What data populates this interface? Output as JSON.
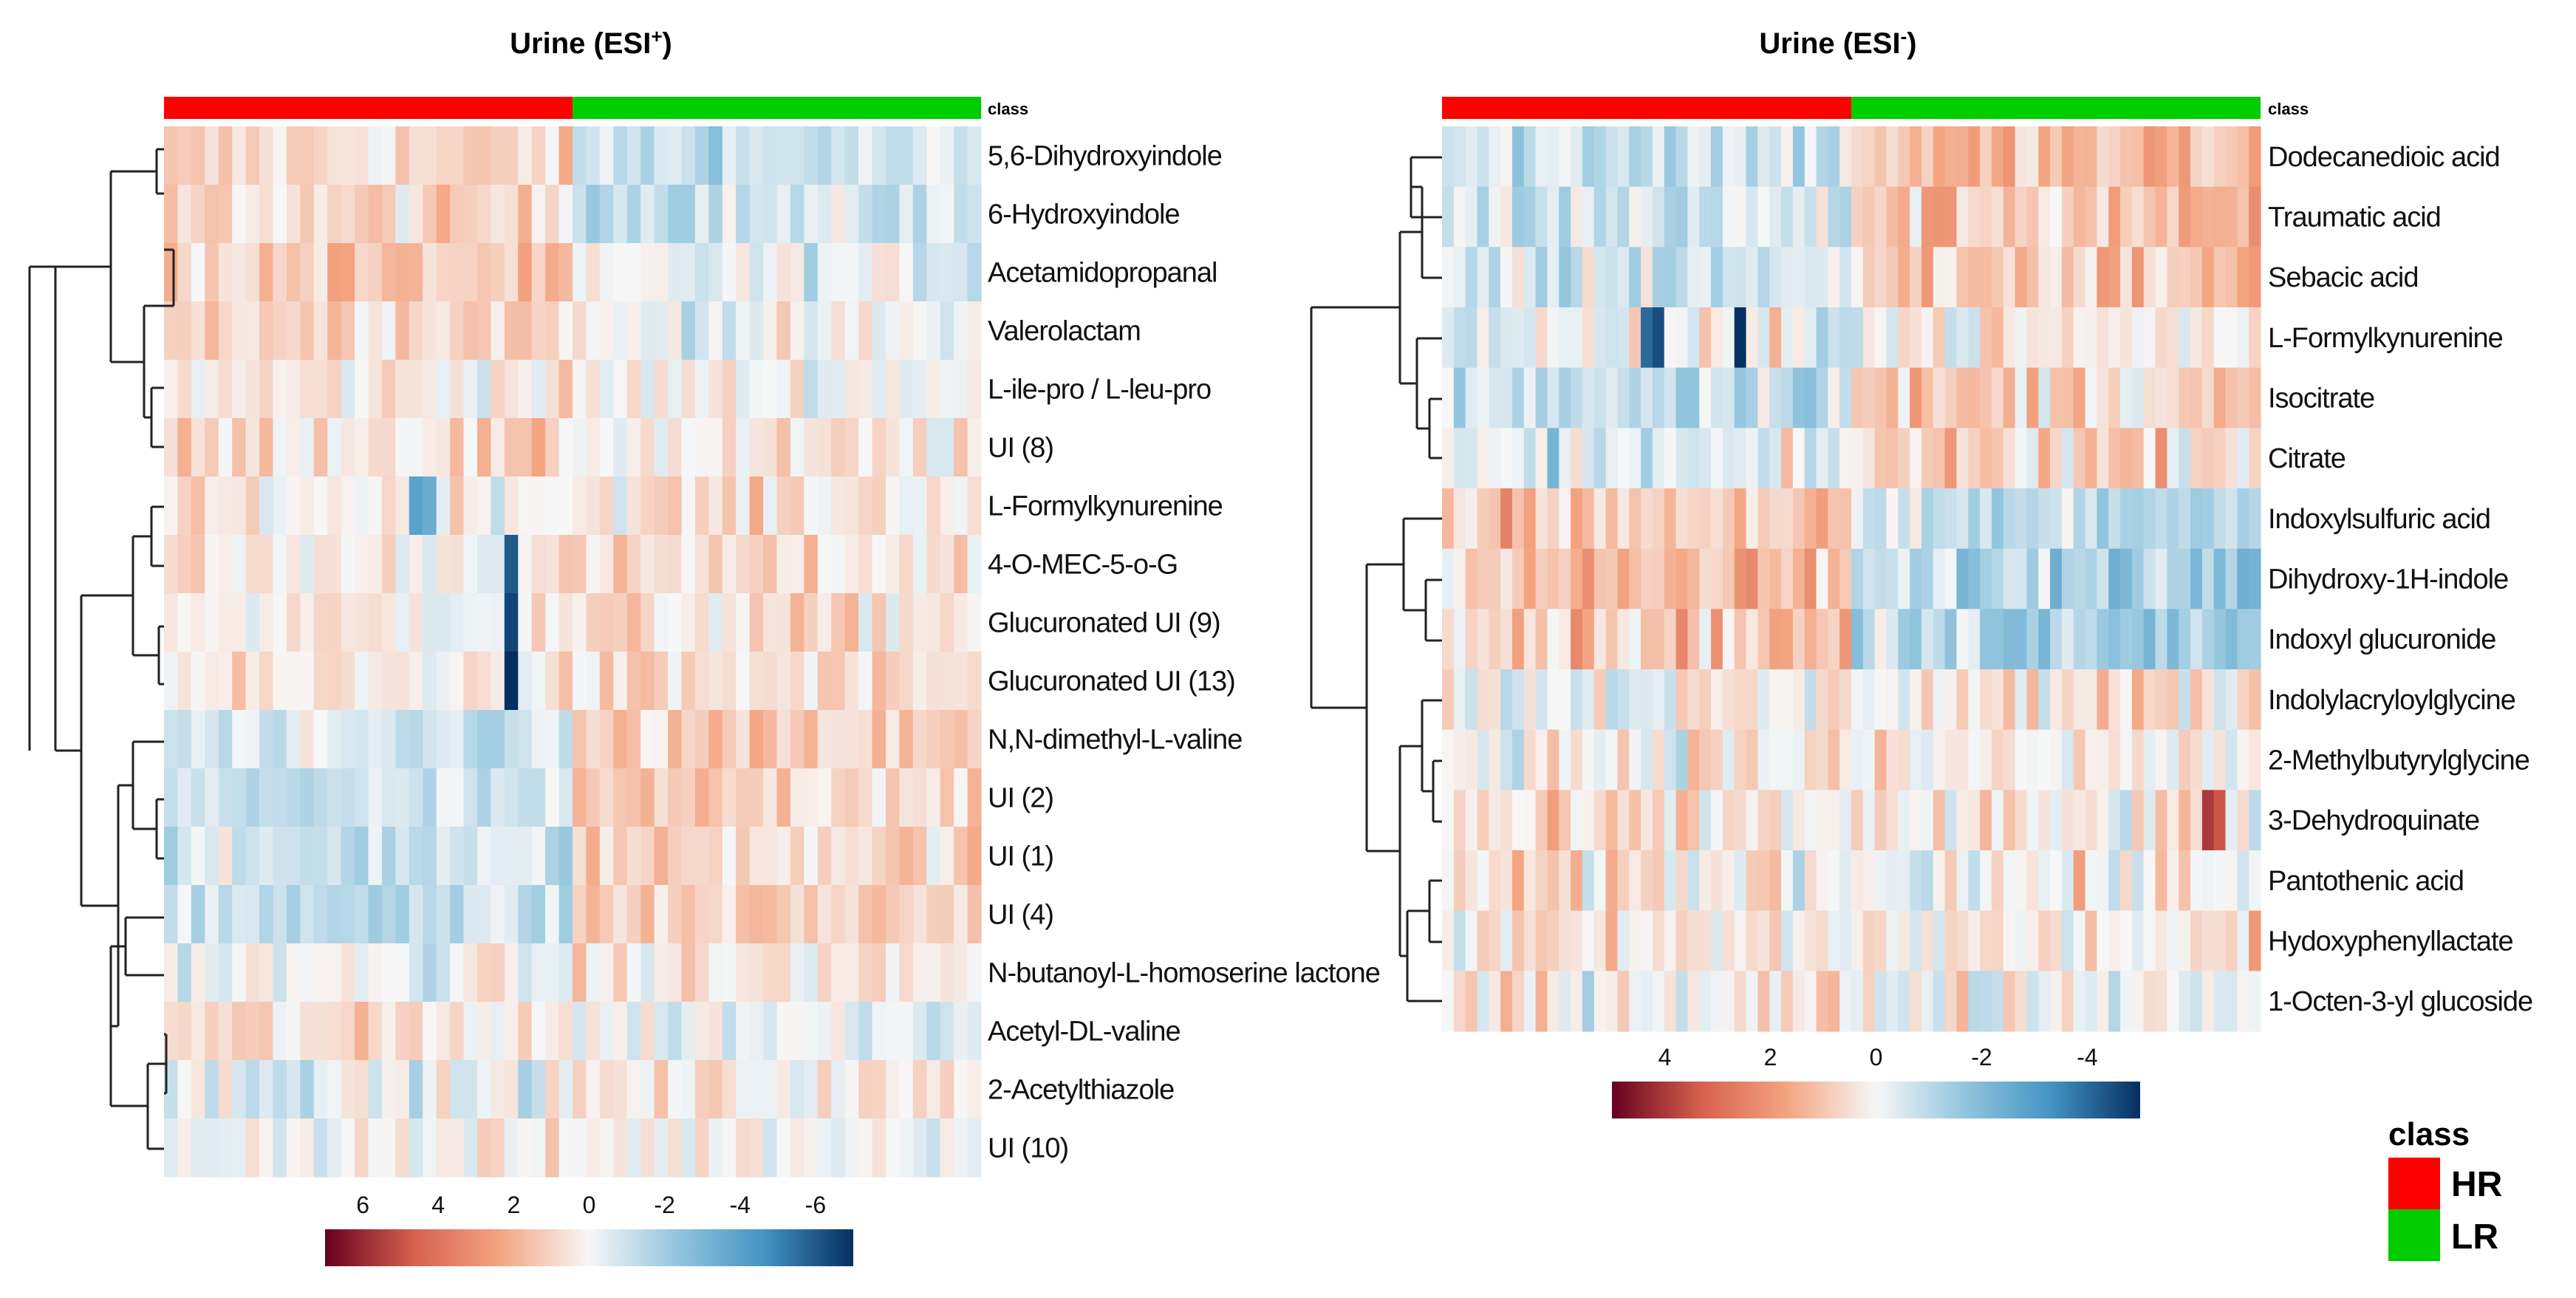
{
  "chart_data": [
    {
      "type": "heatmap",
      "title": "Urine (ESI+)",
      "title_base": "Urine (ESI",
      "title_sup": "+",
      "title_end": ")",
      "column_annotation_label": "class",
      "n_columns": 60,
      "class_split": {
        "HR": 30,
        "LR": 30
      },
      "rows": [
        "5,6-Dihydroxyindole",
        "6-Hydroxyindole",
        "Acetamidopropanal",
        "Valerolactam",
        "L-ile-pro / L-leu-pro",
        "UI (8)",
        "L-Formylkynurenine",
        "4-O-MEC-5-o-G",
        "Glucuronated UI (9)",
        "Glucuronated UI (13)",
        "N,N-dimethyl-L-valine",
        "UI (2)",
        "UI (1)",
        "UI (4)",
        "N-butanoyl-L-homoserine lactone",
        "Acetyl-DL-valine",
        "2-Acetylthiazole",
        "UI (10)"
      ],
      "row_means": {
        "HR": [
          0.8,
          0.8,
          1.2,
          1.2,
          0.4,
          0.8,
          0.3,
          0.3,
          0.3,
          0.3,
          -1.0,
          -1.1,
          -1.0,
          -1.1,
          -0.2,
          0.6,
          -0.3,
          0.1
        ],
        "LR": [
          -1.0,
          -0.9,
          -0.4,
          -0.2,
          0.1,
          0.3,
          0.6,
          0.6,
          0.6,
          0.6,
          1.0,
          1.1,
          1.0,
          1.1,
          0.4,
          -0.2,
          0.3,
          0.2
        ]
      },
      "color_scale": {
        "min": -7,
        "max": 7,
        "ticks": [
          6,
          4,
          2,
          0,
          -2,
          -4,
          -6
        ],
        "colors": [
          "#67001f",
          "#d6604d",
          "#f4a582",
          "#f7f7f7",
          "#92c5de",
          "#4393c3",
          "#053061"
        ]
      }
    },
    {
      "type": "heatmap",
      "title": "Urine (ESI-)",
      "title_base": "Urine (ESI",
      "title_sup": "-",
      "title_end": ")",
      "column_annotation_label": "class",
      "n_columns": 70,
      "class_split": {
        "HR": 35,
        "LR": 35
      },
      "rows": [
        "Dodecanedioic acid",
        "Traumatic acid",
        "Sebacic acid",
        "L-Formylkynurenine",
        "Isocitrate",
        "Citrate",
        "Indoxylsulfuric acid",
        "Dihydroxy-1H-indole",
        "Indoxyl glucuronide",
        "Indolylacryloylglycine",
        "2-Methylbutyrylglycine",
        "3-Dehydroquinate",
        "Pantothenic acid",
        "Hydoxyphenyllactate",
        "1-Octen-3-yl glucoside"
      ],
      "row_means": {
        "HR": [
          -0.6,
          -0.6,
          -0.6,
          -0.2,
          -0.6,
          -0.6,
          1.0,
          1.1,
          1.1,
          0.0,
          0.3,
          0.3,
          0.3,
          0.2,
          0.3
        ],
        "LR": [
          1.1,
          1.0,
          1.0,
          0.2,
          0.8,
          0.8,
          -1.0,
          -1.1,
          -1.1,
          0.4,
          0.1,
          0.1,
          0.1,
          0.2,
          0.1
        ]
      },
      "color_scale": {
        "min": -5,
        "max": 5,
        "ticks": [
          4,
          2,
          0,
          -2,
          -4
        ],
        "colors": [
          "#67001f",
          "#d6604d",
          "#f4a582",
          "#f7f7f7",
          "#92c5de",
          "#4393c3",
          "#053061"
        ]
      }
    }
  ],
  "legend": {
    "title": "class",
    "entries": [
      {
        "label": "HR",
        "color": "#ff0000"
      },
      {
        "label": "LR",
        "color": "#00cc00"
      }
    ]
  }
}
